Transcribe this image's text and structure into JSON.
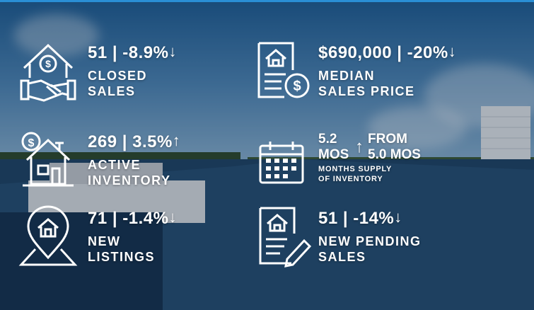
{
  "stats": {
    "closed_sales": {
      "value": "51 | -8.9%",
      "arrow": "↓",
      "label_line1": "CLOSED",
      "label_line2": "SALES",
      "icon": "house-handshake-icon"
    },
    "median_price": {
      "value": "$690,000 | -20%",
      "arrow": "↓",
      "label_line1": "MEDIAN",
      "label_line2": "SALES PRICE",
      "icon": "house-document-dollar-icon"
    },
    "active_inventory": {
      "value": "269 | 3.5%",
      "arrow": "↑",
      "label_line1": "ACTIVE",
      "label_line2": "INVENTORY",
      "icon": "house-dollar-icon"
    },
    "months_supply": {
      "value_line1": "5.2",
      "value_line2": "MOS",
      "arrow": "↑",
      "from_line1": "FROM",
      "from_line2": "5.0 MOS",
      "label_line1": "MONTHS SUPPLY",
      "label_line2": "OF INVENTORY",
      "icon": "calendar-icon"
    },
    "new_listings": {
      "value": "71 | -1.4%",
      "arrow": "↓",
      "label_line1": "NEW",
      "label_line2": "LISTINGS",
      "icon": "location-pin-house-icon"
    },
    "new_pending": {
      "value": "51 | -14%",
      "arrow": "↓",
      "label_line1": "NEW PENDING",
      "label_line2": "SALES",
      "icon": "house-document-pen-icon"
    }
  },
  "colors": {
    "text": "#ffffff",
    "accent_line": "#2a8fd6"
  }
}
